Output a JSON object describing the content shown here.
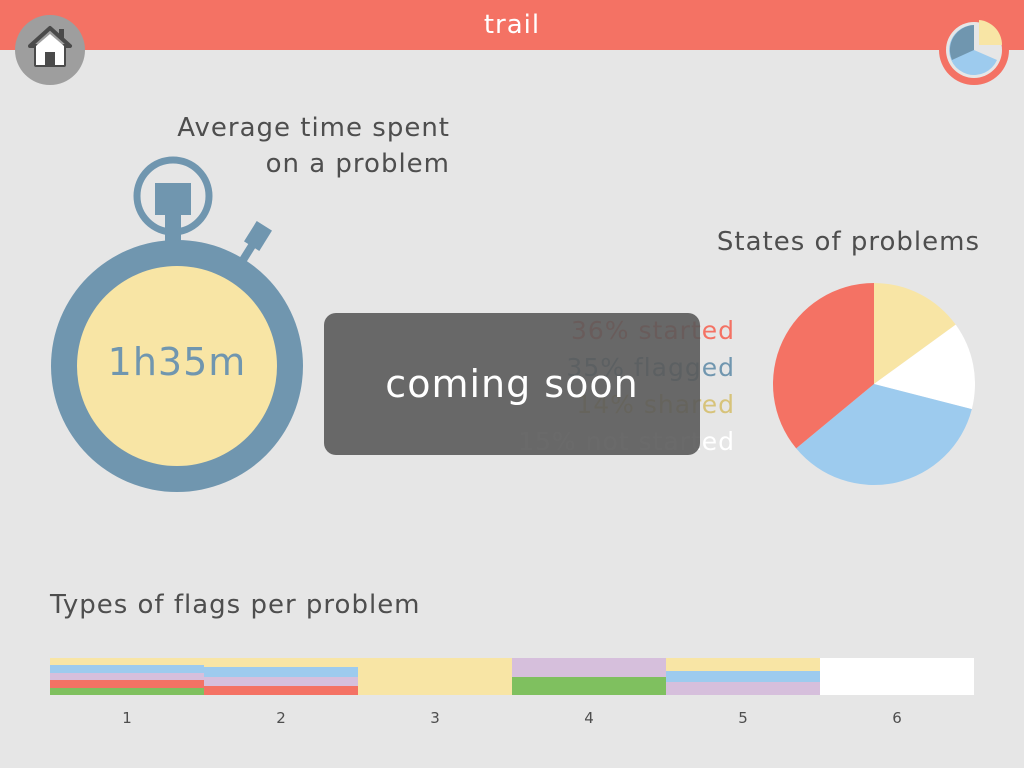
{
  "header": {
    "title": "trail"
  },
  "nav": {
    "home_icon": "home-icon",
    "stats_icon": "pie-chart-icon"
  },
  "average_time": {
    "title_line1": "Average time spent",
    "title_line2": "on a problem",
    "value": "1h35m"
  },
  "overlay": {
    "text": "coming soon"
  },
  "states": {
    "title": "States of problems",
    "legend": [
      {
        "label": "36% started",
        "color": "#f47264"
      },
      {
        "label": "35% flagged",
        "color": "#7096af"
      },
      {
        "label": "14% shared",
        "color": "#d7c37a"
      },
      {
        "label": "15% not started",
        "color": "#ffffff"
      }
    ]
  },
  "flags": {
    "title": "Types of flags per problem"
  },
  "colors": {
    "accent": "#f47264",
    "steel_blue": "#7096af",
    "yellow": "#f8e5a5",
    "light_blue": "#9dcbee",
    "lavender": "#d6bfdc",
    "green": "#7fc05f",
    "background": "#e6e6e6"
  },
  "chart_data": [
    {
      "type": "pie",
      "title": "States of problems",
      "labels": [
        "not started",
        "shared",
        "flagged",
        "started"
      ],
      "values": [
        15,
        14,
        35,
        36
      ],
      "colors": [
        "#f8e5a5",
        "#ffffff",
        "#9dcbee",
        "#f47264"
      ]
    },
    {
      "type": "bar",
      "title": "Types of flags per problem",
      "stacked": true,
      "categories": [
        "1",
        "2",
        "3",
        "4",
        "5",
        "6"
      ],
      "series": [
        {
          "name": "green",
          "color": "#7fc05f",
          "values": [
            0.2,
            0,
            0,
            0.5,
            0,
            0
          ]
        },
        {
          "name": "red",
          "color": "#f47264",
          "values": [
            0.2,
            0.25,
            0,
            0,
            0,
            0
          ]
        },
        {
          "name": "lavender",
          "color": "#d6bfdc",
          "values": [
            0.2,
            0.25,
            0,
            0.5,
            0.35,
            0
          ]
        },
        {
          "name": "light blue",
          "color": "#9dcbee",
          "values": [
            0.2,
            0.25,
            0,
            0,
            0.3,
            0
          ]
        },
        {
          "name": "yellow",
          "color": "#f8e5a5",
          "values": [
            0.2,
            0.25,
            1,
            0,
            0.35,
            0
          ]
        },
        {
          "name": "none",
          "color": "#ffffff",
          "values": [
            0,
            0,
            0,
            0,
            0,
            1
          ]
        }
      ]
    }
  ]
}
